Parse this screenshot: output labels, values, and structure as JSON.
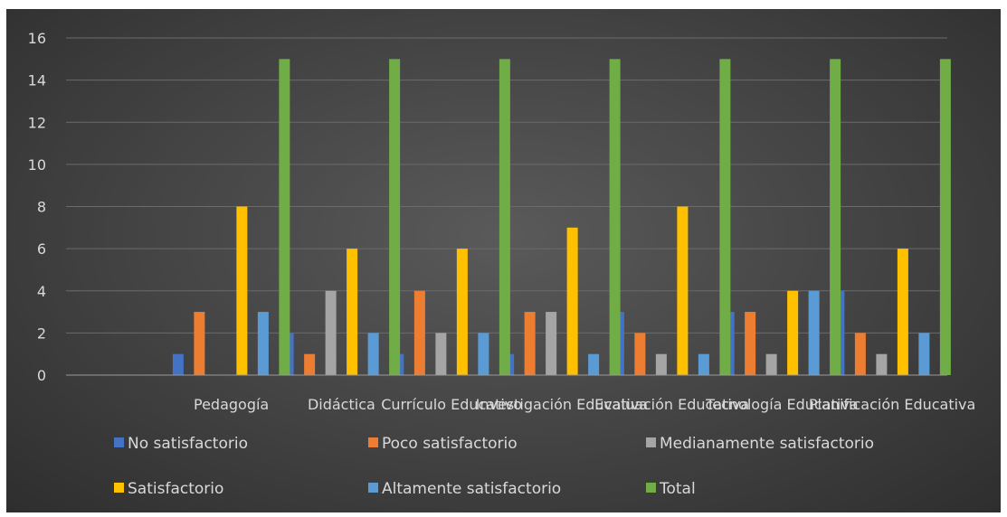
{
  "chart_data": {
    "type": "bar",
    "categories": [
      "",
      "Pedagogía",
      "Didáctica",
      "Currículo Educativo",
      "Investigación Educativa",
      "Evaluación Educativa",
      "Tecnología Educativa",
      "Planificación Educativa"
    ],
    "series": [
      {
        "name": "No satisfactorio",
        "color": "#4472c4",
        "values": [
          null,
          1,
          2,
          1,
          1,
          3,
          3,
          4
        ]
      },
      {
        "name": "Poco satisfactorio",
        "color": "#ed7d31",
        "values": [
          null,
          3,
          1,
          4,
          3,
          2,
          3,
          2
        ]
      },
      {
        "name": "Medianamente satisfactorio",
        "color": "#a5a5a5",
        "values": [
          null,
          0,
          4,
          2,
          3,
          1,
          1,
          1
        ]
      },
      {
        "name": "Satisfactorio",
        "color": "#ffc000",
        "values": [
          null,
          8,
          6,
          6,
          7,
          8,
          4,
          6
        ]
      },
      {
        "name": "Altamente satisfactorio",
        "color": "#5b9bd5",
        "values": [
          null,
          3,
          2,
          2,
          1,
          1,
          4,
          2
        ]
      },
      {
        "name": "Total",
        "color": "#70ad47",
        "values": [
          null,
          15,
          15,
          15,
          15,
          15,
          15,
          15
        ]
      }
    ],
    "yticks": [
      0,
      2,
      4,
      6,
      8,
      10,
      12,
      14,
      16
    ],
    "ylim": [
      0,
      16
    ],
    "grid": true,
    "legend_position": "bottom",
    "title": "",
    "xlabel": "",
    "ylabel": ""
  }
}
